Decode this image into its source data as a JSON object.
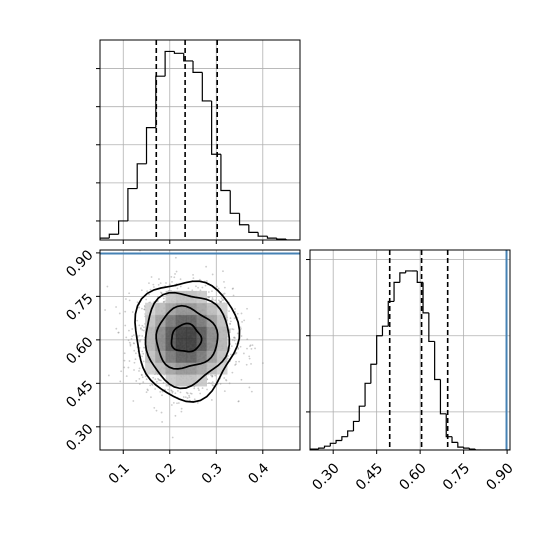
{
  "chart_data": [
    {
      "id": "hist-x",
      "type": "histogram",
      "panel": "top-left",
      "xlim": [
        0.05,
        0.48
      ],
      "ylim": [
        0,
        1.05
      ],
      "xticks": [
        0.1,
        0.2,
        0.3,
        0.4
      ],
      "yticks": [
        0.1,
        0.3,
        0.5,
        0.7,
        0.9
      ],
      "grid": true,
      "bin_edges": [
        0.05,
        0.07,
        0.09,
        0.11,
        0.13,
        0.15,
        0.17,
        0.19,
        0.21,
        0.23,
        0.25,
        0.27,
        0.29,
        0.31,
        0.33,
        0.35,
        0.37,
        0.39,
        0.41,
        0.43,
        0.45,
        0.47,
        0.48
      ],
      "values": [
        0.01,
        0.03,
        0.1,
        0.27,
        0.4,
        0.59,
        0.86,
        0.99,
        0.98,
        0.94,
        0.88,
        0.73,
        0.45,
        0.26,
        0.14,
        0.08,
        0.04,
        0.02,
        0.01,
        0.005,
        0,
        0
      ],
      "quantile_lines": [
        0.171,
        0.233,
        0.302
      ]
    },
    {
      "id": "hist-y",
      "type": "histogram",
      "panel": "bottom-right",
      "xlim": [
        0.22,
        0.91
      ],
      "ylim": [
        0,
        1.05
      ],
      "xticks": [
        "0.30",
        "0.45",
        "0.60",
        "0.75",
        "0.90"
      ],
      "xtick_values": [
        0.3,
        0.45,
        0.6,
        0.75,
        0.9
      ],
      "yticks": [
        0.2,
        0.6,
        1.0
      ],
      "grid": true,
      "bin_edges": [
        0.22,
        0.25,
        0.27,
        0.29,
        0.31,
        0.33,
        0.35,
        0.37,
        0.39,
        0.41,
        0.43,
        0.45,
        0.47,
        0.49,
        0.51,
        0.53,
        0.55,
        0.57,
        0.59,
        0.61,
        0.63,
        0.65,
        0.67,
        0.69,
        0.71,
        0.73,
        0.75,
        0.77,
        0.79,
        0.81,
        0.83,
        0.85,
        0.87,
        0.89,
        0.91
      ],
      "values": [
        0.005,
        0.01,
        0.02,
        0.035,
        0.05,
        0.07,
        0.1,
        0.15,
        0.23,
        0.35,
        0.45,
        0.6,
        0.65,
        0.78,
        0.88,
        0.93,
        0.94,
        0.94,
        0.88,
        0.72,
        0.57,
        0.37,
        0.19,
        0.07,
        0.04,
        0.015,
        0.01,
        0.005,
        0,
        0,
        0,
        0,
        0,
        0
      ],
      "quantile_lines": [
        0.495,
        0.605,
        0.695
      ],
      "truth_line": 0.898,
      "truth_color": "#4682b4"
    },
    {
      "id": "joint",
      "type": "scatter-contour",
      "panel": "bottom-left",
      "xlim": [
        0.05,
        0.48
      ],
      "ylim": [
        0.22,
        0.91
      ],
      "xticks": [
        0.1,
        0.2,
        0.3,
        0.4
      ],
      "yticks": [
        "0.30",
        "0.45",
        "0.60",
        "0.75",
        "0.90"
      ],
      "ytick_values": [
        0.3,
        0.45,
        0.6,
        0.75,
        0.9
      ],
      "grid": true,
      "center": [
        0.235,
        0.605
      ],
      "spread": [
        0.05,
        0.085
      ],
      "contour_levels": [
        {
          "rx": 0.11,
          "ry": 0.205
        },
        {
          "rx": 0.09,
          "ry": 0.16
        },
        {
          "rx": 0.066,
          "ry": 0.105
        },
        {
          "rx": 0.032,
          "ry": 0.048
        }
      ],
      "truth_line": 0.898,
      "truth_color": "#4682b4"
    }
  ]
}
